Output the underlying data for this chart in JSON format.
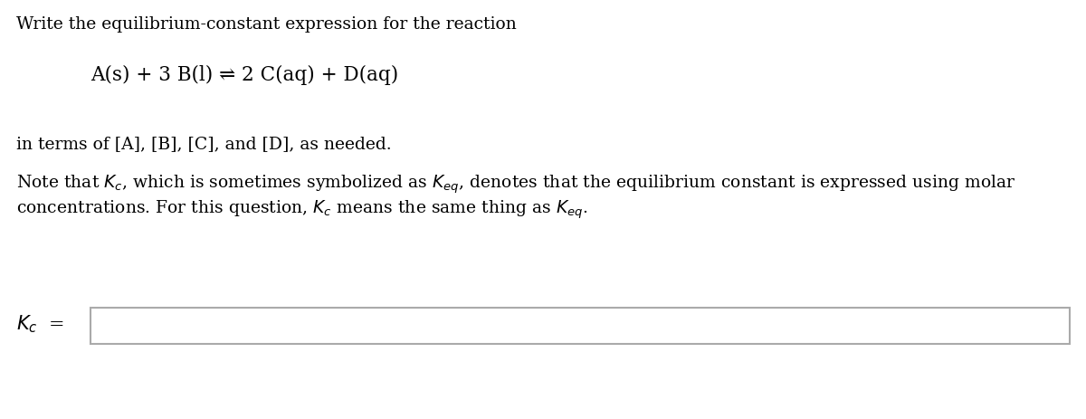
{
  "background_color": "#ffffff",
  "line1": "Write the equilibrium-constant expression for the reaction",
  "reaction": "A(s) + 3 B(l) ⇌ 2 C(aq) + D(aq)",
  "line3": "in terms of [A], [B], [C], and [D], as needed.",
  "note_line1": "Note that $K_c$, which is sometimes symbolized as $K_{eq}$, denotes that the equilibrium constant is expressed using molar",
  "note_line2": "concentrations. For this question, $K_c$ means the same thing as $K_{eq}$.",
  "kc_label": "$K_c$  =",
  "text_color": "#000000",
  "box_facecolor": "#ffffff",
  "box_edgecolor": "#aaaaaa",
  "font_size_main": 13.5,
  "font_size_reaction": 15.5,
  "font_size_kc": 15
}
